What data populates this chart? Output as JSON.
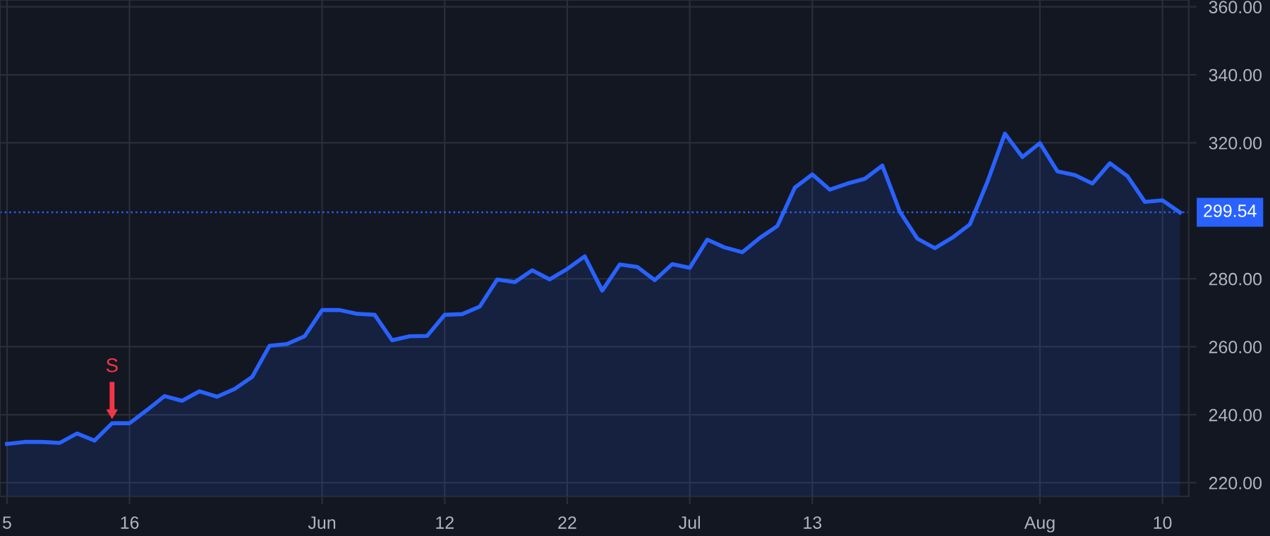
{
  "chart_data": {
    "type": "area",
    "categories": [
      "5",
      null,
      null,
      null,
      null,
      null,
      null,
      "16",
      null,
      null,
      null,
      null,
      null,
      null,
      null,
      null,
      null,
      null,
      "Jun",
      null,
      null,
      null,
      null,
      null,
      null,
      "12",
      null,
      null,
      null,
      null,
      null,
      null,
      "22",
      null,
      null,
      null,
      null,
      null,
      null,
      "Jul",
      null,
      null,
      null,
      null,
      null,
      null,
      "13",
      null,
      null,
      null,
      null,
      null,
      null,
      null,
      null,
      null,
      null,
      null,
      null,
      "Aug",
      null,
      null,
      null,
      null,
      null,
      null,
      "10",
      null
    ],
    "series": [
      {
        "color": "#2962ff",
        "values": [
          231.4,
          232.0,
          232.0,
          231.7,
          234.5,
          232.4,
          237.5,
          237.5,
          241.4,
          245.5,
          244.1,
          246.9,
          245.3,
          247.6,
          251.1,
          260.3,
          260.8,
          263.1,
          270.8,
          270.8,
          269.7,
          269.4,
          261.9,
          263.1,
          263.2,
          269.4,
          269.6,
          271.8,
          279.8,
          279.0,
          282.5,
          279.8,
          282.9,
          286.6,
          276.5,
          284.2,
          283.5,
          279.6,
          284.3,
          283.2,
          291.5,
          289.2,
          287.8,
          292.0,
          295.5,
          306.8,
          310.7,
          306.2,
          308.0,
          309.4,
          313.3,
          299.7,
          291.8,
          289.0,
          292.1,
          296.0,
          308.5,
          322.7,
          315.8,
          319.9,
          311.6,
          310.5,
          308.0,
          314.0,
          310.2,
          302.6,
          303.1,
          299.5
        ]
      }
    ],
    "ylim": [
      216,
      362
    ],
    "yticks": [
      {
        "value": 220,
        "label": "220.00"
      },
      {
        "value": 240,
        "label": "240.00"
      },
      {
        "value": 260,
        "label": "260.00"
      },
      {
        "value": 280,
        "label": "280.00"
      },
      {
        "value": 320,
        "label": "320.00"
      },
      {
        "value": 340,
        "label": "340.00"
      },
      {
        "value": 360,
        "label": "360.00"
      }
    ],
    "ref_lines": [
      {
        "axis": "y",
        "value": 299.54,
        "label": "299.54",
        "color": "#2962ff",
        "line_style": "dotted"
      }
    ],
    "annotations": [
      {
        "text": "S",
        "y": 237.5
      }
    ],
    "grid": true,
    "line_style": "solid"
  }
}
